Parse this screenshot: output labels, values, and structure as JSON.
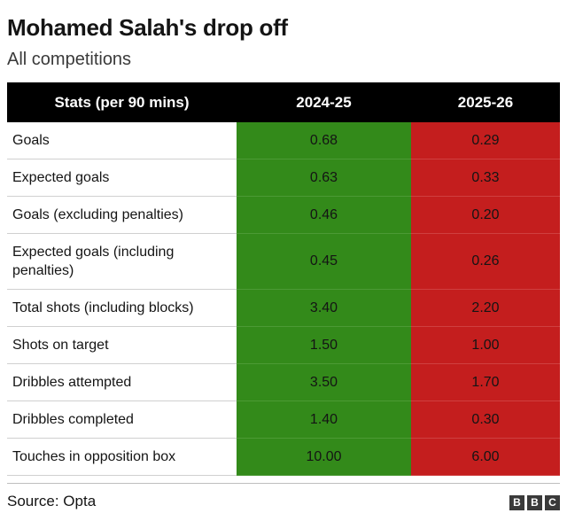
{
  "header": {
    "title": "Mohamed Salah's drop off",
    "subtitle": "All competitions"
  },
  "chart_data": {
    "type": "table",
    "columns": [
      "Stats (per 90 mins)",
      "2024-25",
      "2025-26"
    ],
    "rows": [
      {
        "stat": "Goals",
        "v1": "0.68",
        "v2": "0.29"
      },
      {
        "stat": "Expected goals",
        "v1": "0.63",
        "v2": "0.33"
      },
      {
        "stat": "Goals (excluding penalties)",
        "v1": "0.46",
        "v2": "0.20"
      },
      {
        "stat": "Expected goals (including penalties)",
        "v1": "0.45",
        "v2": "0.26"
      },
      {
        "stat": "Total shots (including blocks)",
        "v1": "3.40",
        "v2": "2.20"
      },
      {
        "stat": "Shots on target",
        "v1": "1.50",
        "v2": "1.00"
      },
      {
        "stat": "Dribbles attempted",
        "v1": "3.50",
        "v2": "1.70"
      },
      {
        "stat": "Dribbles completed",
        "v1": "1.40",
        "v2": "0.30"
      },
      {
        "stat": "Touches in opposition box",
        "v1": "10.00",
        "v2": "6.00"
      }
    ],
    "colors": {
      "season_2024_25": "#338a1a",
      "season_2025_26": "#c41e1e",
      "header": "#000000"
    }
  },
  "footer": {
    "source": "Source: Opta",
    "logo_letters": [
      "B",
      "B",
      "C"
    ]
  }
}
